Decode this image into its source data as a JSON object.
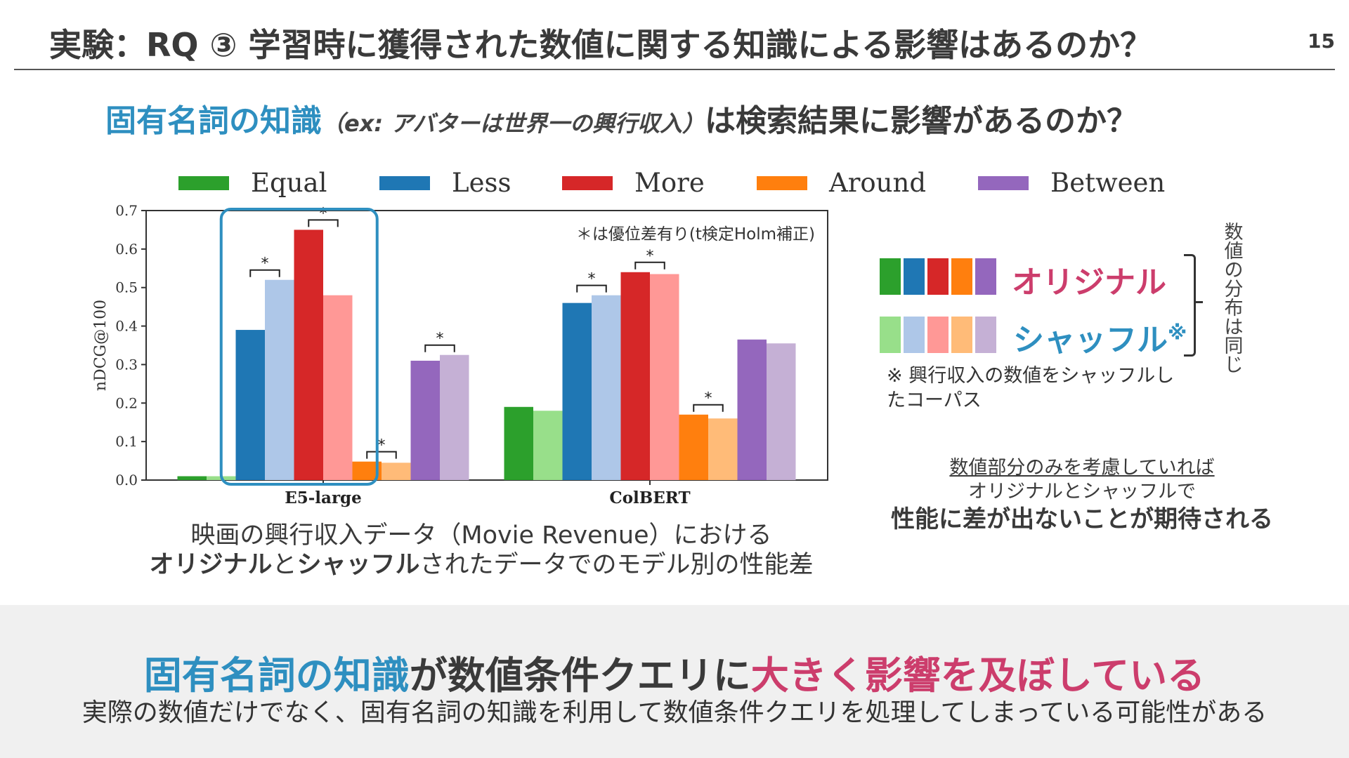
{
  "slide": {
    "title": "実験：RQ ③ 学習時に獲得された数値に関する知識による影響はあるのか？",
    "page_number": "15"
  },
  "question": {
    "highlight": "固有名詞の知識",
    "example": "（ex: アバターは世界一の興行収入）",
    "rest": "は検索結果に影響があるのか？"
  },
  "chart_data": {
    "type": "bar",
    "categories": [
      "E5-large",
      "ColBERT"
    ],
    "ylabel": "nDCG@100",
    "ylim": [
      0,
      0.7
    ],
    "yticks": [
      "0.0",
      "0.1",
      "0.2",
      "0.3",
      "0.4",
      "0.5",
      "0.6",
      "0.7"
    ],
    "legend": [
      {
        "name": "Equal",
        "color": "#2ca02c"
      },
      {
        "name": "Less",
        "color": "#1f77b4"
      },
      {
        "name": "More",
        "color": "#d62728"
      },
      {
        "name": "Around",
        "color": "#ff7f0e"
      },
      {
        "name": "Between",
        "color": "#9467bd"
      }
    ],
    "legend_position": "top",
    "series": [
      {
        "name": "Equal",
        "variant": "original",
        "color": "#2ca02c",
        "values": [
          0.01,
          0.19
        ]
      },
      {
        "name": "Equal",
        "variant": "shuffled",
        "color": "#98df8a",
        "values": [
          0.01,
          0.18
        ]
      },
      {
        "name": "Less",
        "variant": "original",
        "color": "#1f77b4",
        "values": [
          0.39,
          0.46
        ]
      },
      {
        "name": "Less",
        "variant": "shuffled",
        "color": "#aec7e8",
        "values": [
          0.52,
          0.48
        ]
      },
      {
        "name": "More",
        "variant": "original",
        "color": "#d62728",
        "values": [
          0.65,
          0.54
        ]
      },
      {
        "name": "More",
        "variant": "shuffled",
        "color": "#ff9896",
        "values": [
          0.48,
          0.535
        ]
      },
      {
        "name": "Around",
        "variant": "original",
        "color": "#ff7f0e",
        "values": [
          0.048,
          0.17
        ]
      },
      {
        "name": "Around",
        "variant": "shuffled",
        "color": "#ffbb78",
        "values": [
          0.045,
          0.16
        ]
      },
      {
        "name": "Between",
        "variant": "original",
        "color": "#9467bd",
        "values": [
          0.31,
          0.365
        ]
      },
      {
        "name": "Between",
        "variant": "shuffled",
        "color": "#c5b0d5",
        "values": [
          0.325,
          0.355
        ]
      }
    ],
    "significance": [
      {
        "category": "E5-large",
        "pair": "Less"
      },
      {
        "category": "E5-large",
        "pair": "More"
      },
      {
        "category": "E5-large",
        "pair": "Around"
      },
      {
        "category": "E5-large",
        "pair": "Between"
      },
      {
        "category": "ColBERT",
        "pair": "Less"
      },
      {
        "category": "ColBERT",
        "pair": "More"
      },
      {
        "category": "ColBERT",
        "pair": "Around"
      }
    ],
    "significance_symbol": "*",
    "annotation": "＊は優位差有り(t検定Holm補正)",
    "highlight_box_category": "E5-large",
    "grid": false
  },
  "caption": {
    "line1": "映画の興行収入データ（Movie Revenue）における",
    "line2_bold1": "オリジナル",
    "line2_mid": "と",
    "line2_bold2": "シャッフル",
    "line2_rest": "されたデータでのモデル別の性能差"
  },
  "variants": {
    "original_label": "オリジナル",
    "original_colors": [
      "#2ca02c",
      "#1f77b4",
      "#d62728",
      "#ff7f0e",
      "#9467bd"
    ],
    "shuffled_label": "シャッフル",
    "shuffled_mark": "※",
    "shuffled_colors": [
      "#98df8a",
      "#aec7e8",
      "#ff9896",
      "#ffbb78",
      "#c5b0d5"
    ],
    "bracket_note": "数値の分布は同じ",
    "shuffle_note": "※ 興行収入の数値をシャッフルしたコーパス"
  },
  "expectation": {
    "line1": "数値部分のみを考慮していれば",
    "line2": "オリジナルとシャッフルで",
    "line3": "性能に差が出ないことが期待される"
  },
  "conclusion": {
    "part1": "固有名詞の知識",
    "part2": "が数値条件クエリに",
    "part3": "大きく影響を及ぼしている",
    "sub": "実際の数値だけでなく、固有名詞の知識を利用して数値条件クエリを処理してしまっている可能性がある"
  }
}
